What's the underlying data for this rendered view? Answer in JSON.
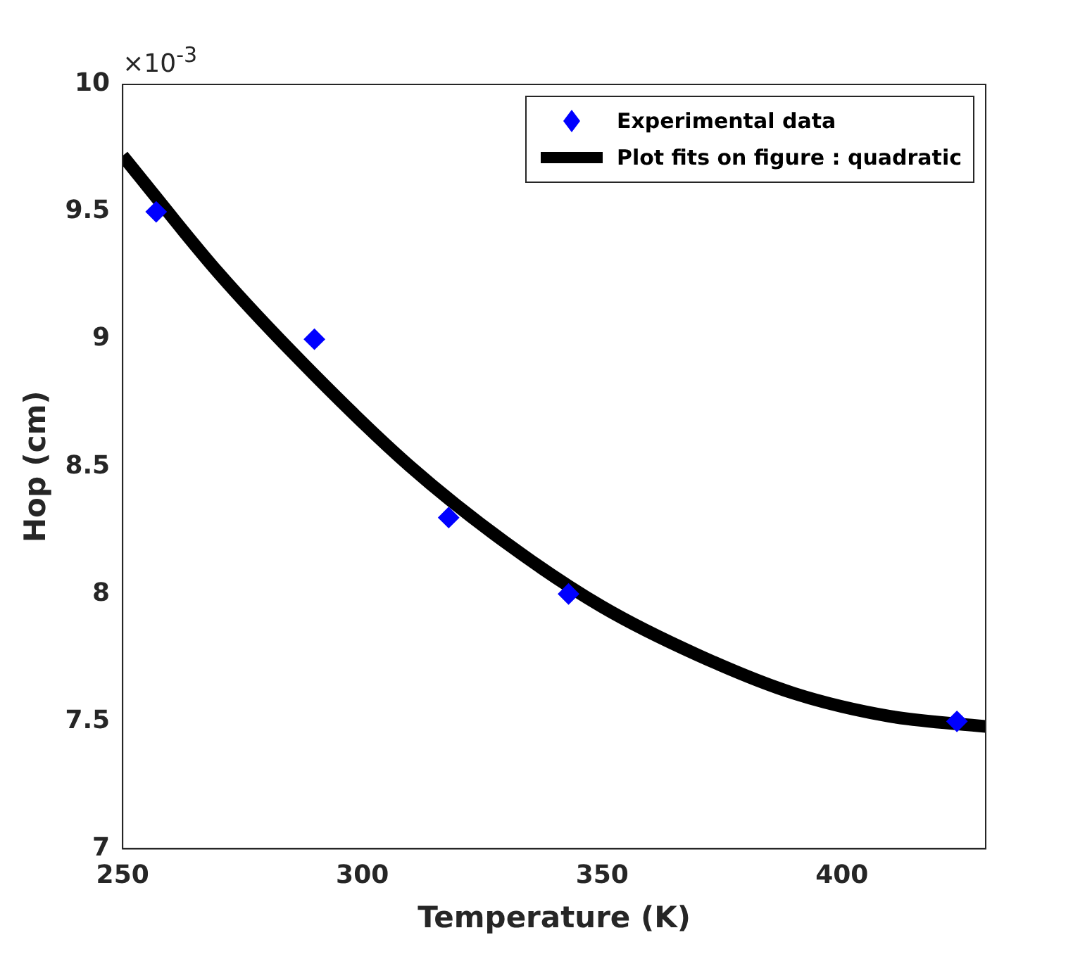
{
  "chart_data": {
    "type": "scatter",
    "xlabel": "Temperature (K)",
    "ylabel": "Hop (cm)",
    "annotations": [
      "×10$^{-3}$"
    ],
    "xlim": [
      250,
      430
    ],
    "xticks": [
      250,
      300,
      350,
      400
    ],
    "ylim": [
      7,
      10
    ],
    "yticks": [
      7,
      7.5,
      8,
      8.5,
      9,
      9.5,
      10
    ],
    "grid": false,
    "legend": "top right",
    "series": [
      {
        "name": "Experimental data",
        "marker": "diamond",
        "color": "#0000ff",
        "x": [
          257,
          290,
          318,
          343,
          424
        ],
        "values": [
          9.5,
          9.0,
          8.3,
          8.0,
          7.5
        ]
      },
      {
        "name": "Plot fits on figure : quadratic",
        "type": "line",
        "marker": "none",
        "line_style": "solid",
        "color": "#000000",
        "x": [
          250,
          270,
          290,
          310,
          330,
          350,
          370,
          390,
          410,
          430
        ],
        "values": [
          9.72,
          9.26,
          8.86,
          8.5,
          8.2,
          7.95,
          7.76,
          7.61,
          7.52,
          7.48
        ]
      }
    ]
  }
}
